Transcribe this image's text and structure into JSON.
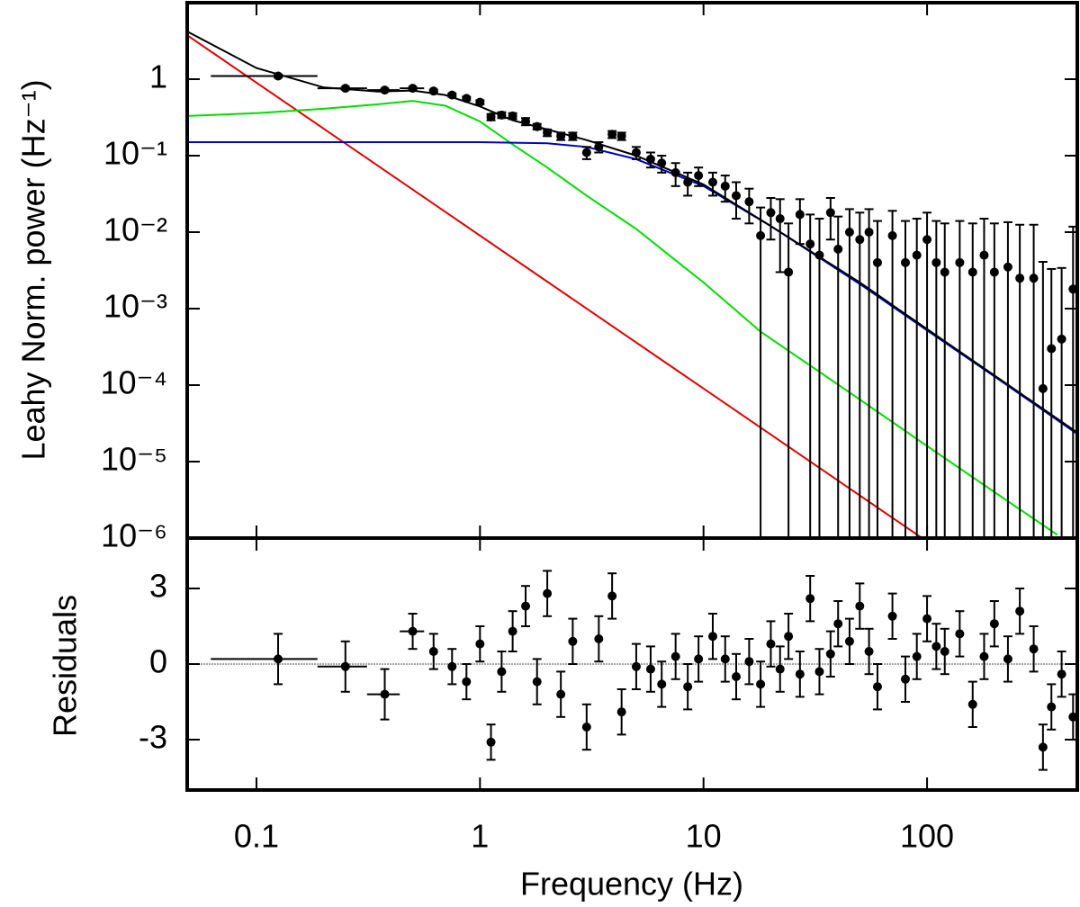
{
  "chart_data": [
    {
      "type": "errorbar",
      "ylabel": "Leahy Norm. power (Hz⁻¹)",
      "log_x": true,
      "log_y": true,
      "xlim": [
        0.049,
        470
      ],
      "ylim": [
        1e-06,
        10
      ],
      "xticks": [
        0.1,
        1,
        10,
        100
      ],
      "yticks": [
        {
          "value": 1,
          "label": "1"
        },
        {
          "value": 0.1,
          "label": "10⁻¹"
        },
        {
          "value": 0.01,
          "label": "10⁻²"
        },
        {
          "value": 0.001,
          "label": "10⁻³"
        },
        {
          "value": 0.0001,
          "label": "10⁻⁴"
        },
        {
          "value": 1e-05,
          "label": "10⁻⁵"
        },
        {
          "value": 1e-06,
          "label": "10⁻⁶"
        }
      ],
      "models": [
        {
          "color": "#e00000",
          "x": [
            0.049,
            95
          ],
          "values": [
            3.75,
            1e-06
          ]
        },
        {
          "color": "#00dd00",
          "x": [
            0.049,
            0.1,
            0.2,
            0.35,
            0.5,
            0.7,
            1,
            1.4,
            2,
            3,
            5,
            10,
            18,
            50,
            100,
            200,
            383
          ],
          "values": [
            0.33,
            0.36,
            0.41,
            0.47,
            0.52,
            0.45,
            0.28,
            0.14,
            0.07,
            0.03,
            0.011,
            0.0022,
            0.0005,
            6.5e-05,
            1.6e-05,
            4e-06,
            1.1e-06
          ]
        },
        {
          "color": "#0000cc",
          "x": [
            0.049,
            1,
            2,
            3,
            5,
            10,
            20,
            50,
            100,
            200,
            470
          ],
          "values": [
            0.15,
            0.15,
            0.145,
            0.13,
            0.09,
            0.04,
            0.012,
            0.0021,
            0.00052,
            0.00013,
            2.3e-05
          ]
        },
        {
          "color": "#000000",
          "x": [
            0.049,
            0.1,
            0.2,
            0.35,
            0.5,
            0.7,
            1,
            1.4,
            2,
            3,
            5,
            10,
            20,
            50,
            100,
            200,
            470
          ],
          "values": [
            4.2,
            1.4,
            0.78,
            0.69,
            0.71,
            0.62,
            0.44,
            0.29,
            0.22,
            0.16,
            0.1,
            0.042,
            0.012,
            0.0022,
            0.00054,
            0.000134,
            2.4e-05
          ]
        }
      ],
      "points": {
        "color": "#000000",
        "x": [
          0.125,
          0.25,
          0.375,
          0.5,
          0.62,
          0.75,
          0.87,
          1.0,
          1.12,
          1.25,
          1.4,
          1.6,
          1.8,
          2.0,
          2.3,
          2.6,
          3.0,
          3.4,
          3.9,
          4.3,
          5,
          5.8,
          6.5,
          7.5,
          8.5,
          9.5,
          11,
          12.5,
          14,
          16,
          18,
          20,
          22,
          24,
          27,
          30,
          33,
          37,
          40,
          45,
          50,
          55,
          60,
          70,
          80,
          90,
          100,
          110,
          120,
          140,
          160,
          180,
          200,
          230,
          260,
          300,
          330,
          360,
          400,
          450
        ],
        "xerr": [
          0.0625,
          0.0625,
          0.0625,
          0.0625,
          null,
          null,
          null,
          null,
          null,
          null,
          null,
          null,
          null,
          null,
          null,
          null,
          null,
          null,
          null,
          null,
          null,
          null,
          null,
          null,
          null,
          null,
          null,
          null,
          null,
          null,
          null,
          null,
          null,
          null,
          null,
          null,
          null,
          null,
          null,
          null,
          null,
          null,
          null,
          null,
          null,
          null,
          null,
          null,
          null,
          null,
          null,
          null,
          null,
          null,
          null,
          null,
          null,
          null,
          null,
          null
        ],
        "values": [
          1.1,
          0.76,
          0.72,
          0.76,
          0.7,
          0.62,
          0.56,
          0.5,
          0.32,
          0.34,
          0.33,
          0.28,
          0.24,
          0.2,
          0.18,
          0.18,
          0.11,
          0.13,
          0.19,
          0.18,
          0.11,
          0.09,
          0.08,
          0.06,
          0.045,
          0.055,
          0.045,
          0.04,
          0.03,
          0.025,
          0.009,
          0.018,
          0.015,
          0.003,
          0.017,
          0.007,
          0.005,
          0.018,
          0.006,
          0.01,
          0.008,
          0.01,
          0.004,
          0.009,
          0.004,
          0.005,
          0.008,
          0.004,
          0.003,
          0.004,
          0.003,
          0.005,
          0.003,
          0.0035,
          0.0025,
          0.0025,
          9e-05,
          0.0003,
          0.0004,
          0.0018
        ],
        "yerr": [
          0.05,
          0.03,
          0.03,
          0.03,
          0.03,
          0.03,
          0.03,
          0.03,
          0.03,
          0.03,
          0.03,
          0.03,
          0.02,
          0.02,
          0.02,
          0.02,
          0.02,
          0.02,
          0.02,
          0.02,
          0.02,
          0.02,
          0.02,
          0.02,
          0.015,
          0.015,
          0.015,
          0.015,
          0.015,
          0.012,
          0.012,
          0.01,
          0.012,
          0.01,
          0.01,
          0.01,
          0.01,
          0.01,
          0.01,
          0.01,
          0.01,
          0.01,
          0.01,
          0.01,
          0.01,
          0.01,
          0.01,
          0.01,
          0.01,
          0.01,
          0.01,
          0.01,
          0.01,
          0.01,
          0.01,
          0.01,
          0.004,
          0.003,
          0.003,
          0.01
        ]
      }
    },
    {
      "type": "errorbar",
      "ylabel": "Residuals",
      "xlabel": "Frequency (Hz)",
      "log_x": true,
      "log_y": false,
      "xlim": [
        0.049,
        470
      ],
      "ylim": [
        -5,
        5
      ],
      "xticks": [
        0.1,
        1,
        10,
        100
      ],
      "yticks": [
        3,
        0,
        -3
      ],
      "reference_line": 0,
      "points": {
        "color": "#000000",
        "x": [
          0.125,
          0.25,
          0.375,
          0.5,
          0.62,
          0.75,
          0.87,
          1.0,
          1.12,
          1.25,
          1.4,
          1.6,
          1.8,
          2.0,
          2.3,
          2.6,
          3.0,
          3.4,
          3.9,
          4.3,
          5,
          5.8,
          6.5,
          7.5,
          8.5,
          9.5,
          11,
          12.5,
          14,
          16,
          18,
          20,
          22,
          24,
          27,
          30,
          33,
          37,
          40,
          45,
          50,
          55,
          60,
          70,
          80,
          90,
          100,
          110,
          120,
          140,
          160,
          180,
          200,
          230,
          260,
          300,
          330,
          360,
          400,
          450
        ],
        "xerr": [
          0.0625,
          0.0625,
          0.0625,
          0.0625,
          null,
          null,
          null,
          null,
          null,
          null,
          null,
          null,
          null,
          null,
          null,
          null,
          null,
          null,
          null,
          null,
          null,
          null,
          null,
          null,
          null,
          null,
          null,
          null,
          null,
          null,
          null,
          null,
          null,
          null,
          null,
          null,
          null,
          null,
          null,
          null,
          null,
          null,
          null,
          null,
          null,
          null,
          null,
          null,
          null,
          null,
          null,
          null,
          null,
          null,
          null,
          null,
          null,
          null,
          null,
          null
        ],
        "values": [
          0.2,
          -0.1,
          -1.2,
          1.3,
          0.5,
          -0.1,
          -0.7,
          0.8,
          -3.1,
          -0.3,
          1.3,
          2.3,
          -0.7,
          2.8,
          -1.2,
          0.9,
          -2.5,
          1.0,
          2.7,
          -1.9,
          -0.1,
          -0.2,
          -0.8,
          0.3,
          -0.9,
          0.2,
          1.1,
          0.2,
          -0.5,
          0.1,
          -0.8,
          0.8,
          -0.2,
          1.1,
          -0.4,
          2.6,
          -0.3,
          0.4,
          1.6,
          0.9,
          2.3,
          0.5,
          -0.9,
          1.9,
          -0.6,
          0.3,
          1.8,
          0.7,
          0.5,
          1.2,
          -1.6,
          0.3,
          1.6,
          0.2,
          2.1,
          0.6,
          -3.3,
          -1.7,
          -0.4,
          -2.1
        ],
        "yerr": [
          1,
          1,
          1,
          0.7,
          0.7,
          0.7,
          0.7,
          0.7,
          0.7,
          0.8,
          0.8,
          0.8,
          0.9,
          0.9,
          0.9,
          0.9,
          0.9,
          0.9,
          0.9,
          0.9,
          0.9,
          0.9,
          0.9,
          0.9,
          0.9,
          0.9,
          0.9,
          0.9,
          0.9,
          0.9,
          0.9,
          0.9,
          0.9,
          0.9,
          0.9,
          0.9,
          0.9,
          0.9,
          0.9,
          0.9,
          0.9,
          0.9,
          0.9,
          0.9,
          0.9,
          0.9,
          0.9,
          0.9,
          0.9,
          0.9,
          0.9,
          0.9,
          0.9,
          0.9,
          0.9,
          0.9,
          0.9,
          0.9,
          0.9,
          0.9
        ]
      }
    }
  ]
}
